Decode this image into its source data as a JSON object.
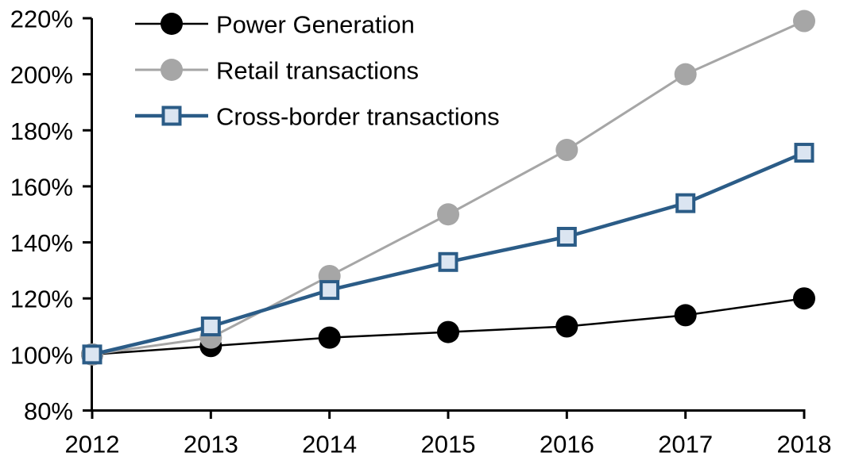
{
  "chart_data": {
    "type": "line",
    "title": "",
    "xlabel": "",
    "ylabel": "",
    "grid": false,
    "legend_position": "top-left-inside",
    "categories": [
      2012,
      2013,
      2014,
      2015,
      2016,
      2017,
      2018
    ],
    "x_tick_labels": [
      "2012",
      "2013",
      "2014",
      "2015",
      "2016",
      "2017",
      "2018"
    ],
    "y_axis": {
      "min": 80,
      "max": 220,
      "step": 20,
      "unit": "%",
      "tick_labels": [
        "220%",
        "200%",
        "180%",
        "160%",
        "140%",
        "120%",
        "100%",
        "80%"
      ]
    },
    "series": [
      {
        "name": "Power Generation",
        "marker": "circle",
        "color": "#000000",
        "marker_fill": "#000000",
        "line_width": 2.5,
        "values": [
          100,
          103,
          106,
          108,
          110,
          114,
          120
        ]
      },
      {
        "name": "Retail transactions",
        "marker": "circle",
        "color": "#a6a6a6",
        "marker_fill": "#a6a6a6",
        "line_width": 3,
        "values": [
          100,
          106,
          128,
          150,
          173,
          200,
          219
        ]
      },
      {
        "name": "Cross-border transactions",
        "marker": "square",
        "color": "#2b5c87",
        "marker_fill": "#dbe5f1",
        "line_width": 4.5,
        "values": [
          100,
          110,
          123,
          133,
          142,
          154,
          172
        ]
      }
    ]
  },
  "colors": {
    "axis": "#000000",
    "background": "#ffffff"
  }
}
